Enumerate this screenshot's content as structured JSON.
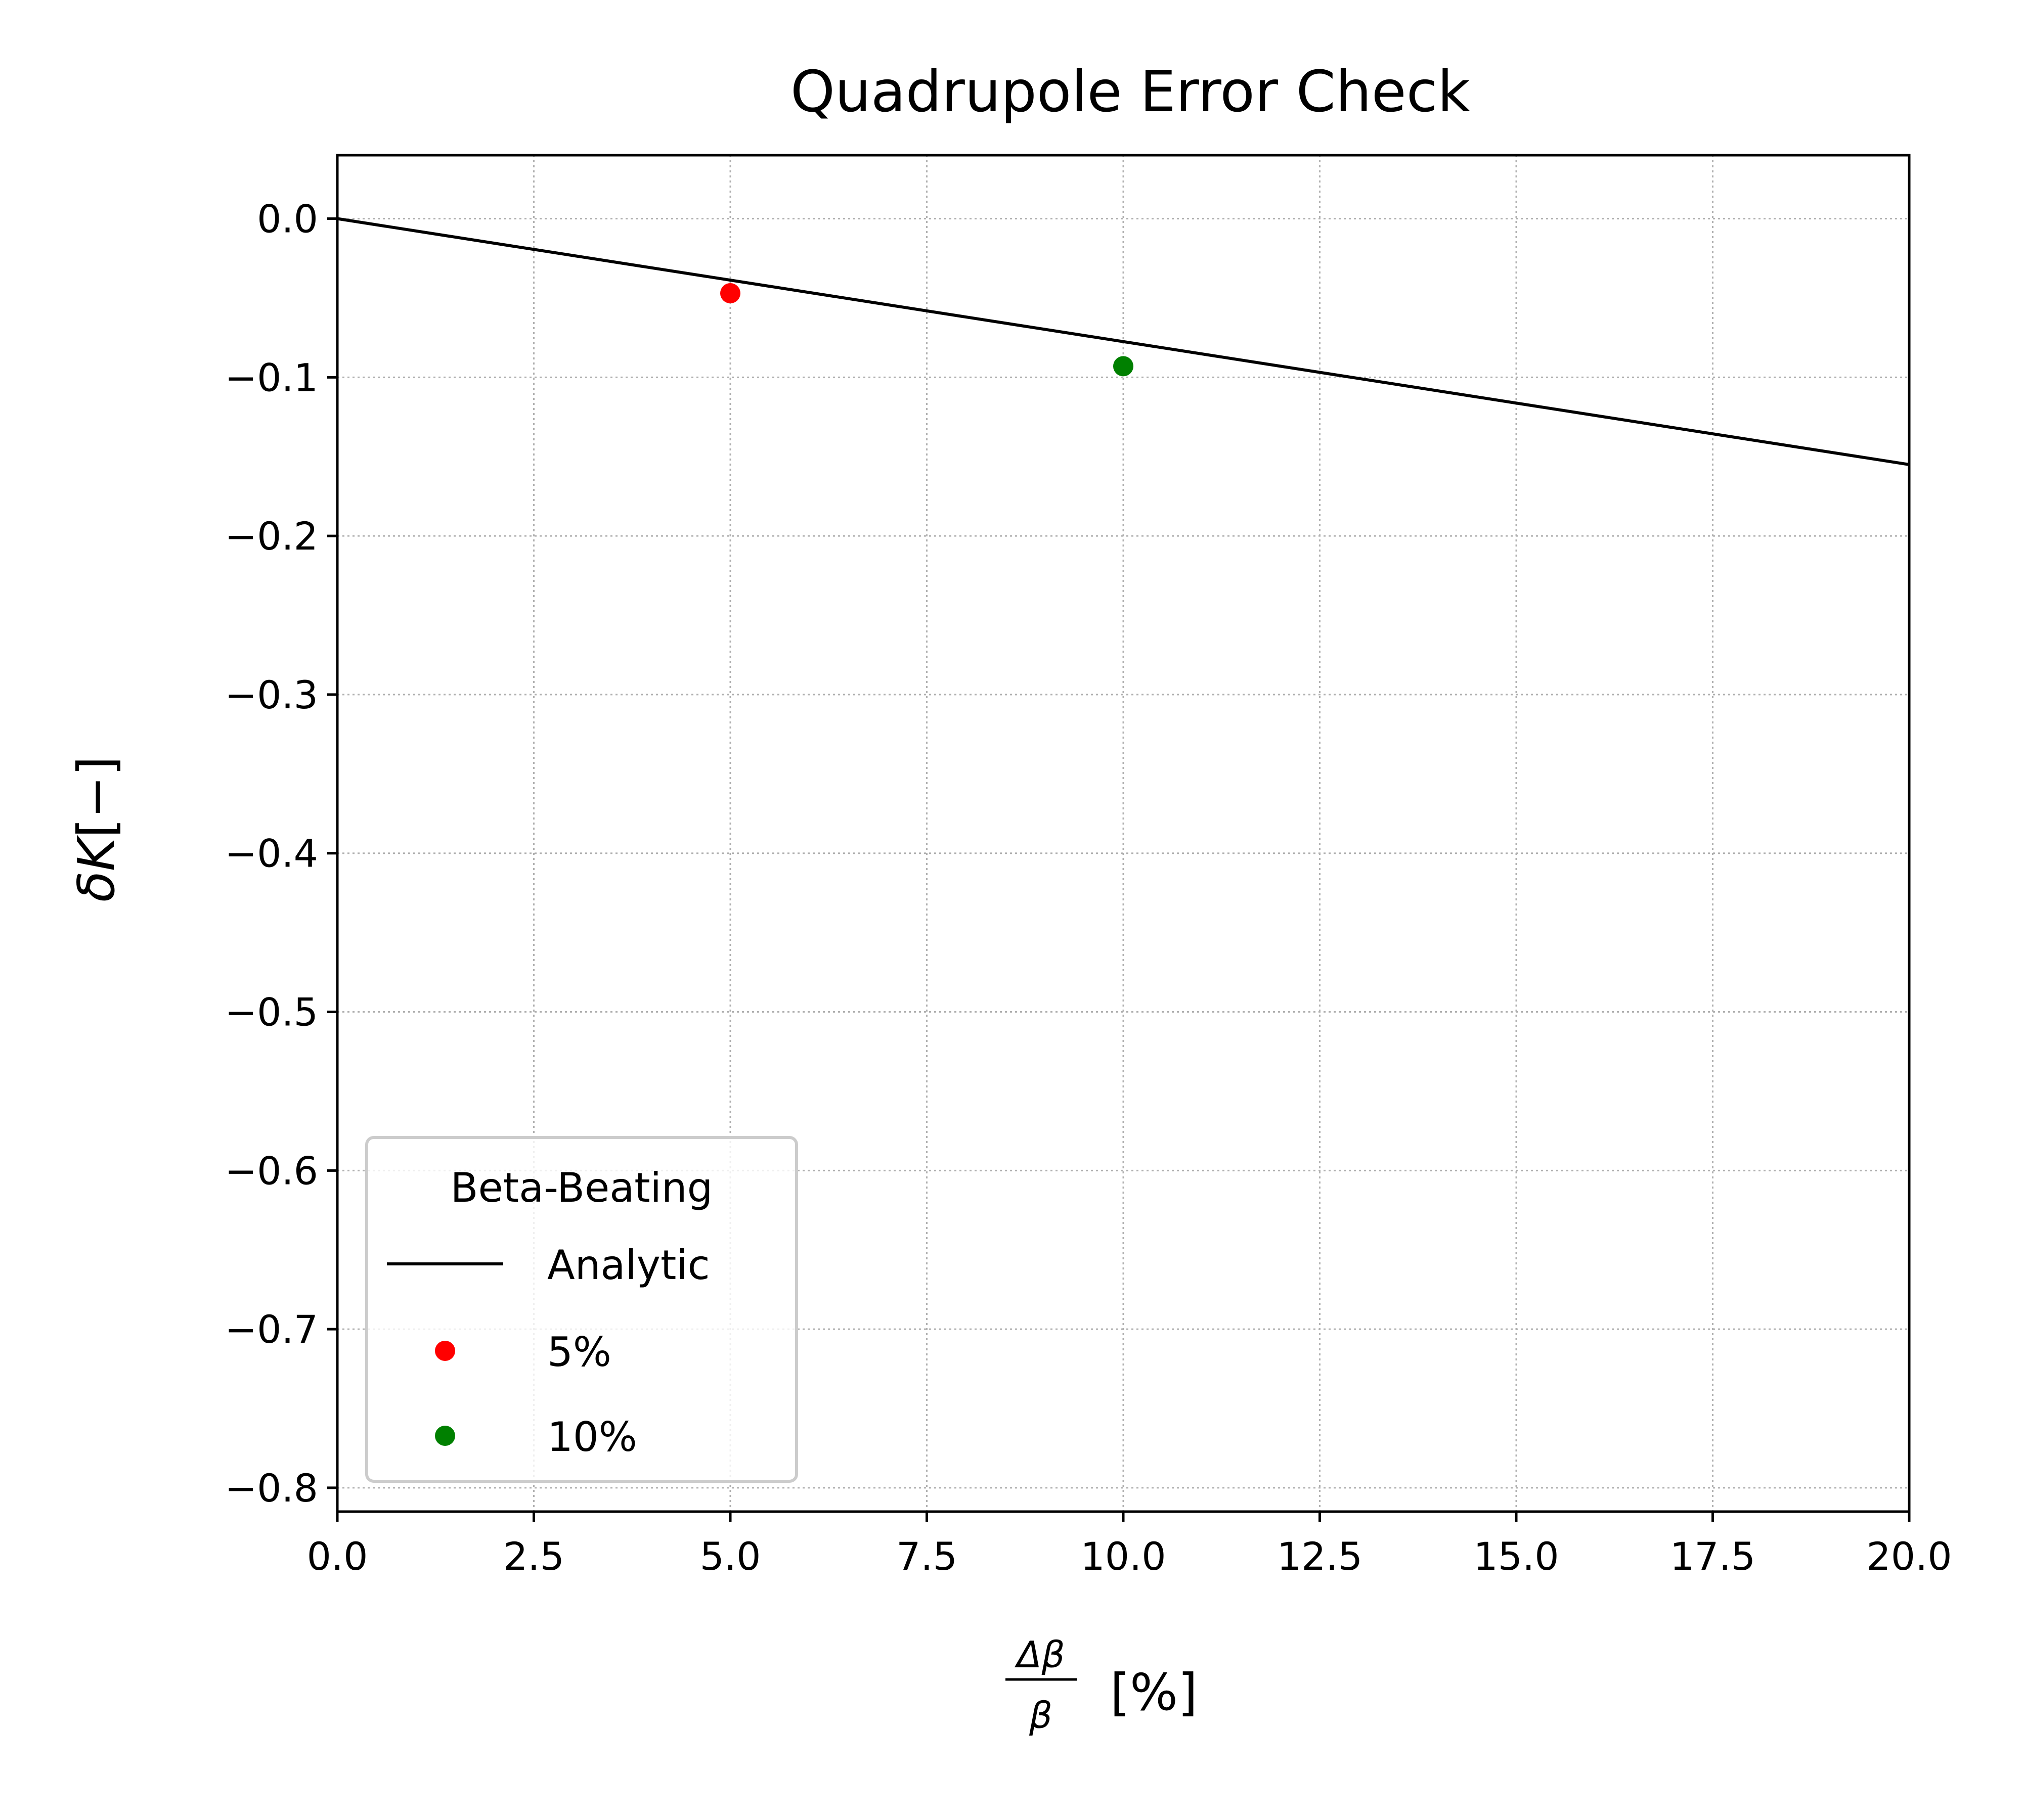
{
  "chart_data": {
    "type": "line",
    "title": "Quadrupole Error Check",
    "xlabel": {
      "numerator": "Δβ",
      "denominator": "β",
      "unit": "[%]"
    },
    "ylabel": {
      "symbol": "δK",
      "unit": "[−]"
    },
    "xlim": [
      0.0,
      20.0
    ],
    "ylim": [
      -0.815,
      0.04
    ],
    "xticks": [
      "0.0",
      "2.5",
      "5.0",
      "7.5",
      "10.0",
      "12.5",
      "15.0",
      "17.5",
      "20.0"
    ],
    "yticks": [
      "0.0",
      "−0.1",
      "−0.2",
      "−0.3",
      "−0.4",
      "−0.5",
      "−0.6",
      "−0.7",
      "−0.8"
    ],
    "grid": true,
    "legend": {
      "title": "Beta-Beating",
      "placement": "lower-left"
    },
    "series": [
      {
        "name": "Analytic",
        "kind": "line",
        "color": "#000000",
        "x": [
          0.0,
          20.0
        ],
        "y": [
          0.0,
          -0.155
        ]
      },
      {
        "name": "5%",
        "kind": "scatter",
        "color": "#ff0000",
        "x": [
          5.0
        ],
        "y": [
          -0.047
        ]
      },
      {
        "name": "10%",
        "kind": "scatter",
        "color": "#008000",
        "x": [
          10.0
        ],
        "y": [
          -0.093
        ]
      }
    ]
  }
}
